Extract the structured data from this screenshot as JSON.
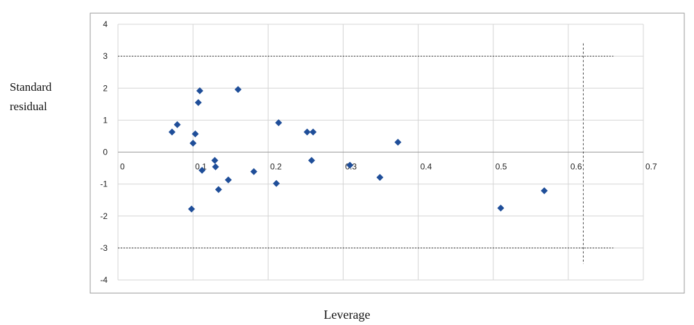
{
  "chart_data": {
    "type": "scatter",
    "ylabel_line1": "Standard",
    "ylabel_line2": "residual",
    "xlabel": "Leverage",
    "xlim": [
      0,
      0.7
    ],
    "ylim": [
      -4,
      4
    ],
    "x_ticks": [
      0,
      0.1,
      0.2,
      0.3,
      0.4,
      0.5,
      0.6,
      0.7
    ],
    "x_tick_labels": [
      "0",
      "0.1",
      "0.2",
      "0.3",
      "0.4",
      "0.5",
      "0.6",
      "0.7"
    ],
    "y_ticks": [
      -4,
      -3,
      -2,
      -1,
      0,
      1,
      2,
      3,
      4
    ],
    "y_tick_labels": [
      "-4",
      "-3",
      "-2",
      "-1",
      "0",
      "1",
      "2",
      "3",
      "4"
    ],
    "grid": true,
    "marker": "diamond",
    "marker_color": "#1f4e99",
    "reference_lines": {
      "y_values": [
        3,
        -3
      ],
      "x_value": 0.62,
      "style": "dashed"
    },
    "points": [
      {
        "x": 0.072,
        "y": 0.63
      },
      {
        "x": 0.079,
        "y": 0.86
      },
      {
        "x": 0.098,
        "y": -1.78
      },
      {
        "x": 0.1,
        "y": 0.28
      },
      {
        "x": 0.103,
        "y": 0.57
      },
      {
        "x": 0.107,
        "y": 1.55
      },
      {
        "x": 0.109,
        "y": 1.92
      },
      {
        "x": 0.112,
        "y": -0.57
      },
      {
        "x": 0.129,
        "y": -0.26
      },
      {
        "x": 0.13,
        "y": -0.46
      },
      {
        "x": 0.134,
        "y": -1.17
      },
      {
        "x": 0.147,
        "y": -0.87
      },
      {
        "x": 0.16,
        "y": 1.96
      },
      {
        "x": 0.181,
        "y": -0.61
      },
      {
        "x": 0.211,
        "y": -0.98
      },
      {
        "x": 0.214,
        "y": 0.92
      },
      {
        "x": 0.252,
        "y": 0.63
      },
      {
        "x": 0.26,
        "y": 0.63
      },
      {
        "x": 0.258,
        "y": -0.26
      },
      {
        "x": 0.309,
        "y": -0.41
      },
      {
        "x": 0.349,
        "y": -0.79
      },
      {
        "x": 0.373,
        "y": 0.31
      },
      {
        "x": 0.51,
        "y": -1.75
      },
      {
        "x": 0.568,
        "y": -1.21
      }
    ]
  }
}
